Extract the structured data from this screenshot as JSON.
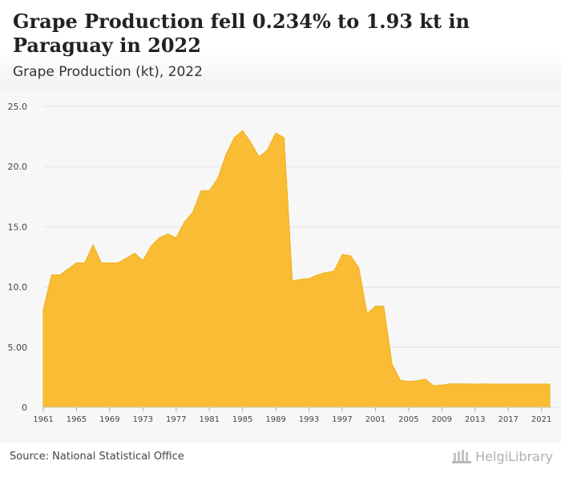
{
  "header": {
    "title": "Grape Production fell 0.234% to 1.93 kt in Paraguay in 2022",
    "subtitle": "Grape Production (kt), 2022"
  },
  "footer": {
    "source": "Source: National Statistical Office",
    "logo_text": "HelgiLibrary"
  },
  "colors": {
    "area_fill": "#f9bc34",
    "area_stroke": "#f0b21c",
    "grid": "#e2e2e2",
    "tick_text": "#444444"
  },
  "chart_data": {
    "type": "area",
    "title": "Grape Production (kt), 2022",
    "xlabel": "",
    "ylabel": "",
    "x": [
      1961,
      1962,
      1963,
      1964,
      1965,
      1966,
      1967,
      1968,
      1969,
      1970,
      1971,
      1972,
      1973,
      1974,
      1975,
      1976,
      1977,
      1978,
      1979,
      1980,
      1981,
      1982,
      1983,
      1984,
      1985,
      1986,
      1987,
      1988,
      1989,
      1990,
      1991,
      1992,
      1993,
      1994,
      1995,
      1996,
      1997,
      1998,
      1999,
      2000,
      2001,
      2002,
      2003,
      2004,
      2005,
      2006,
      2007,
      2008,
      2009,
      2010,
      2011,
      2012,
      2013,
      2014,
      2015,
      2016,
      2017,
      2018,
      2019,
      2020,
      2021,
      2022
    ],
    "series": [
      {
        "values": [
          8.1,
          11.0,
          11.0,
          11.5,
          12.0,
          12.0,
          13.5,
          12.0,
          12.0,
          12.0,
          12.4,
          12.8,
          12.2,
          13.4,
          14.1,
          14.4,
          14.1,
          15.4,
          16.2,
          18.0,
          18.0,
          19.0,
          21.0,
          22.4,
          23.0,
          22.0,
          20.8,
          21.4,
          22.8,
          22.4,
          10.5,
          10.65,
          10.7,
          11.0,
          11.2,
          11.3,
          12.7,
          12.6,
          11.6,
          7.8,
          8.4,
          8.4,
          3.6,
          2.25,
          2.15,
          2.2,
          2.35,
          1.8,
          1.85,
          1.95,
          1.95,
          1.95,
          1.93,
          1.95,
          1.93,
          1.93,
          1.94,
          1.94,
          1.94,
          1.94,
          1.94,
          1.93
        ]
      }
    ],
    "ylim": [
      0,
      25
    ],
    "yticks": [
      0,
      5,
      10,
      15,
      20,
      25
    ],
    "ytick_labels": [
      "0",
      "5.00",
      "10.0",
      "15.0",
      "20.0",
      "25.0"
    ],
    "xticks": [
      1961,
      1965,
      1969,
      1973,
      1977,
      1981,
      1985,
      1989,
      1993,
      1997,
      2001,
      2005,
      2009,
      2013,
      2017,
      2021
    ],
    "grid": true
  }
}
